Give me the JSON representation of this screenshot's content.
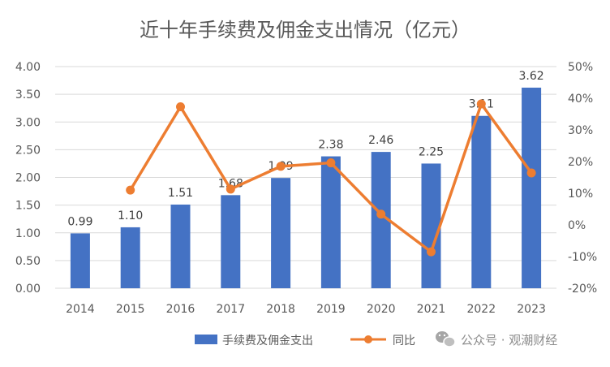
{
  "chart_data": {
    "type": "bar",
    "title": "近十年手续费及佣金支出情况（亿元）",
    "categories": [
      "2014",
      "2015",
      "2016",
      "2017",
      "2018",
      "2019",
      "2020",
      "2021",
      "2022",
      "2023"
    ],
    "series": [
      {
        "name": "手续费及佣金支出",
        "type": "bar",
        "axis": "left",
        "values": [
          0.99,
          1.1,
          1.51,
          1.68,
          1.99,
          2.38,
          2.46,
          2.25,
          3.11,
          3.62
        ],
        "labels": [
          "0.99",
          "1.10",
          "1.51",
          "1.68",
          "1.99",
          "2.38",
          "2.46",
          "2.25",
          "3.11",
          "3.62"
        ]
      },
      {
        "name": "同比",
        "type": "line",
        "axis": "right",
        "values": [
          null,
          0.11,
          0.373,
          0.113,
          0.185,
          0.196,
          0.034,
          -0.085,
          0.382,
          0.164
        ]
      }
    ],
    "yleft": {
      "min": 0,
      "max": 4,
      "step": 0.5,
      "ticks": [
        "0.00",
        "0.50",
        "1.00",
        "1.50",
        "2.00",
        "2.50",
        "3.00",
        "3.50",
        "4.00"
      ]
    },
    "yright": {
      "min": -0.2,
      "max": 0.5,
      "step": 0.1,
      "ticks": [
        "-20%",
        "-10%",
        "0%",
        "10%",
        "20%",
        "30%",
        "40%",
        "50%"
      ]
    },
    "colors": {
      "bar": "#4472C4",
      "line": "#ED7D31",
      "grid": "#D9D9D9",
      "text": "#595959"
    },
    "grid": true,
    "legend": "bottom-center"
  },
  "watermark": {
    "text": "公众号 · 观潮财经",
    "icon": "wechat-icon"
  }
}
